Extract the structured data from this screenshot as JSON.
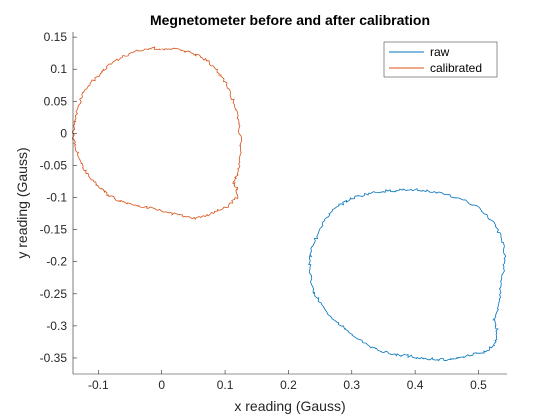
{
  "chart_data": {
    "type": "line",
    "title": "Megnetometer before and after calibration",
    "xlabel": "x reading (Gauss)",
    "ylabel": "y reading (Gauss)",
    "xlim": [
      -0.14,
      0.545
    ],
    "ylim": [
      -0.375,
      0.158
    ],
    "xticks": [
      -0.1,
      0,
      0.1,
      0.2,
      0.3,
      0.4,
      0.5
    ],
    "xtick_labels": [
      "-0.1",
      "0",
      "0.1",
      "0.2",
      "0.3",
      "0.4",
      "0.5"
    ],
    "yticks": [
      0.15,
      0.1,
      0.05,
      0,
      -0.05,
      -0.1,
      -0.15,
      -0.2,
      -0.25,
      -0.3,
      -0.35
    ],
    "ytick_labels": [
      "0.15",
      "0.1",
      "0.05",
      "0",
      "-0.05",
      "-0.1",
      "-0.15",
      "-0.2",
      "-0.25",
      "-0.3",
      "-0.35"
    ],
    "grid": false,
    "legend": {
      "position": "top-right",
      "entries": [
        "raw",
        "calibrated"
      ]
    },
    "series": [
      {
        "name": "raw",
        "color": "#0072BD",
        "x": [
          0.37,
          0.39,
          0.42,
          0.45,
          0.48,
          0.505,
          0.525,
          0.538,
          0.542,
          0.54,
          0.535,
          0.532,
          0.525,
          0.53,
          0.525,
          0.51,
          0.49,
          0.47,
          0.45,
          0.43,
          0.41,
          0.39,
          0.37,
          0.35,
          0.33,
          0.31,
          0.29,
          0.27,
          0.255,
          0.242,
          0.235,
          0.233,
          0.236,
          0.245,
          0.255,
          0.265,
          0.28,
          0.3,
          0.325,
          0.35,
          0.37
        ],
        "y": [
          -0.089,
          -0.087,
          -0.09,
          -0.095,
          -0.105,
          -0.12,
          -0.14,
          -0.165,
          -0.19,
          -0.215,
          -0.24,
          -0.265,
          -0.29,
          -0.31,
          -0.33,
          -0.34,
          -0.345,
          -0.35,
          -0.353,
          -0.352,
          -0.35,
          -0.347,
          -0.345,
          -0.34,
          -0.333,
          -0.32,
          -0.305,
          -0.29,
          -0.27,
          -0.25,
          -0.225,
          -0.2,
          -0.18,
          -0.16,
          -0.14,
          -0.125,
          -0.112,
          -0.101,
          -0.094,
          -0.09,
          -0.089
        ]
      },
      {
        "name": "calibrated",
        "color": "#D95319",
        "x": [
          0.0,
          -0.02,
          -0.04,
          -0.06,
          -0.08,
          -0.095,
          -0.11,
          -0.125,
          -0.13,
          -0.135,
          -0.138,
          -0.14,
          -0.135,
          -0.128,
          -0.12,
          -0.11,
          -0.098,
          -0.085,
          -0.07,
          -0.05,
          -0.03,
          -0.01,
          0.01,
          0.03,
          0.05,
          0.07,
          0.09,
          0.105,
          0.12,
          0.118,
          0.113,
          0.12,
          0.123,
          0.125,
          0.123,
          0.12,
          0.113,
          0.103,
          0.09,
          0.075,
          0.06,
          0.04,
          0.02,
          0.0
        ],
        "y": [
          0.132,
          0.133,
          0.128,
          0.12,
          0.108,
          0.095,
          0.08,
          0.063,
          0.045,
          0.028,
          0.012,
          -0.005,
          -0.025,
          -0.045,
          -0.06,
          -0.073,
          -0.085,
          -0.095,
          -0.104,
          -0.11,
          -0.114,
          -0.118,
          -0.123,
          -0.128,
          -0.133,
          -0.128,
          -0.12,
          -0.113,
          -0.098,
          -0.085,
          -0.075,
          -0.063,
          -0.045,
          -0.02,
          0.005,
          0.03,
          0.052,
          0.075,
          0.095,
          0.11,
          0.12,
          0.128,
          0.132,
          0.132
        ]
      }
    ]
  }
}
